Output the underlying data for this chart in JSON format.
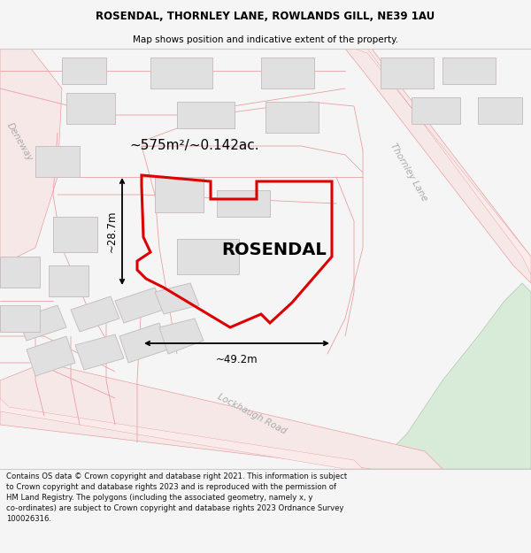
{
  "title_line1": "ROSENDAL, THORNLEY LANE, ROWLANDS GILL, NE39 1AU",
  "title_line2": "Map shows position and indicative extent of the property.",
  "property_name": "ROSENDAL",
  "area_text": "~575m²/~0.142ac.",
  "dim_width": "~49.2m",
  "dim_height": "~28.7m",
  "footer_text_lines": [
    "Contains OS data © Crown copyright and database right 2021. This information is subject",
    "to Crown copyright and database rights 2023 and is reproduced with the permission of",
    "HM Land Registry. The polygons (including the associated geometry, namely x, y",
    "co-ordinates) are subject to Crown copyright and database rights 2023 Ordnance Survey",
    "100026316."
  ],
  "bg_color": "#f5f5f5",
  "map_bg": "#ffffff",
  "road_fill": "#f7e8e8",
  "road_stroke": "#e8a0a0",
  "building_fill": "#e0e0e0",
  "building_stroke": "#c8c0c0",
  "property_stroke": "#dd0000",
  "green_fill": "#d8ead8",
  "green_stroke": "#b0c8b0",
  "dim_color": "#000000",
  "label_color": "#aaaaaa",
  "title_fontsize": 8.5,
  "subtitle_fontsize": 7.5,
  "footer_fontsize": 6.1,
  "area_fontsize": 11,
  "property_fontsize": 14,
  "road_label_fontsize": 7.5,
  "dim_fontsize": 8.5
}
